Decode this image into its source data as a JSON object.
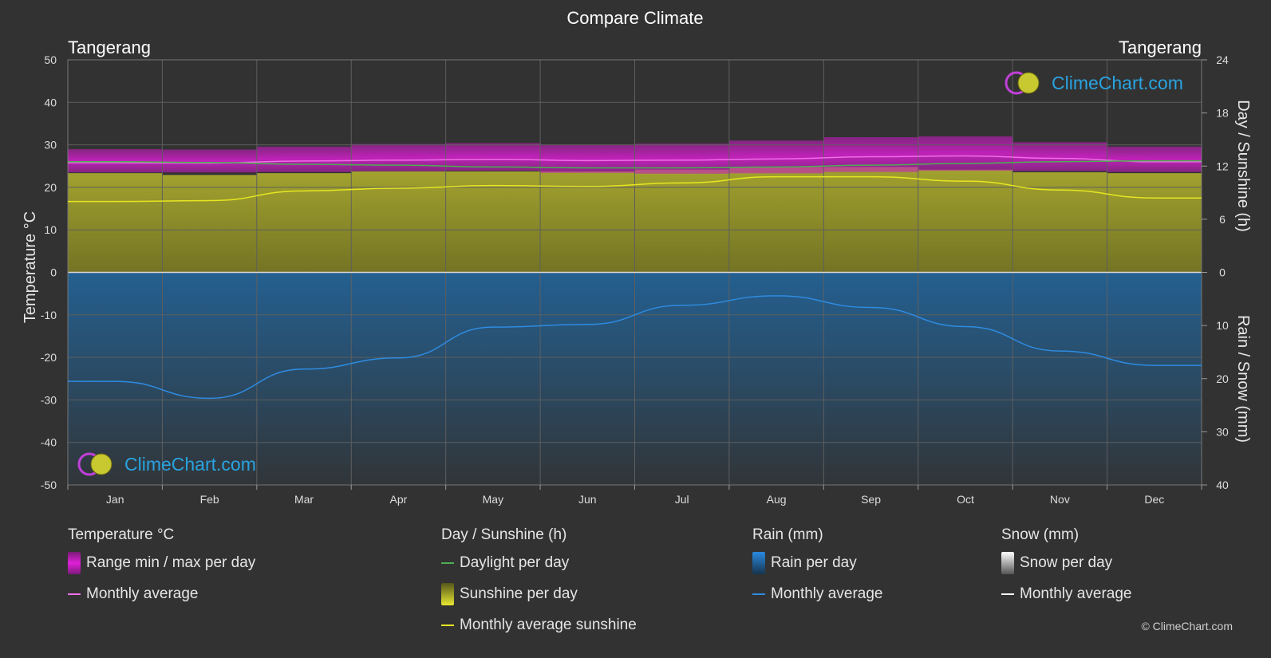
{
  "chart_data": {
    "type": "area",
    "title": "Compare Climate",
    "location_left": "Tangerang",
    "location_right": "Tangerang",
    "categories": [
      "Jan",
      "Feb",
      "Mar",
      "Apr",
      "May",
      "Jun",
      "Jul",
      "Aug",
      "Sep",
      "Oct",
      "Nov",
      "Dec"
    ],
    "y_left": {
      "label": "Temperature °C",
      "ticks": [
        50,
        40,
        30,
        20,
        10,
        0,
        -10,
        -20,
        -30,
        -40,
        -50
      ],
      "range": [
        -50,
        50
      ]
    },
    "y_right_top": {
      "label": "Day / Sunshine (h)",
      "ticks": [
        24,
        18,
        12,
        6,
        0
      ],
      "range": [
        0,
        24
      ]
    },
    "y_right_bottom": {
      "label": "Rain / Snow (mm)",
      "ticks": [
        0,
        10,
        20,
        30,
        40
      ],
      "range": [
        0,
        40
      ]
    },
    "grid": true,
    "series": [
      {
        "name": "Range min / max per day",
        "kind": "band",
        "color": "#d020c8",
        "min": [
          23.5,
          23.5,
          23.6,
          23.8,
          23.9,
          23.4,
          23.2,
          23.3,
          23.6,
          23.9,
          23.8,
          23.6
        ],
        "max": [
          29.0,
          28.9,
          29.6,
          30.2,
          30.4,
          30.1,
          30.3,
          31.0,
          31.8,
          32.0,
          30.6,
          29.6
        ]
      },
      {
        "name": "Monthly average",
        "group": "temperature",
        "color": "#f06ee8",
        "values": [
          25.8,
          25.7,
          26.2,
          26.4,
          26.6,
          26.3,
          26.4,
          26.7,
          27.2,
          27.4,
          26.8,
          26.0
        ]
      },
      {
        "name": "Daylight per day",
        "color": "#4caf50",
        "values": [
          12.5,
          12.4,
          12.2,
          12.1,
          11.9,
          11.8,
          11.8,
          11.9,
          12.1,
          12.3,
          12.5,
          12.6
        ]
      },
      {
        "name": "Sunshine per day",
        "kind": "area",
        "color": "#b5b52e",
        "values": [
          11.2,
          11.0,
          11.2,
          11.4,
          11.4,
          11.4,
          11.6,
          11.9,
          11.9,
          11.6,
          11.3,
          11.2
        ]
      },
      {
        "name": "Monthly average sunshine",
        "color": "#e6e622",
        "values": [
          8.0,
          8.1,
          9.2,
          9.5,
          9.8,
          9.7,
          10.1,
          10.8,
          10.8,
          10.3,
          9.3,
          8.4
        ]
      },
      {
        "name": "Rain per day",
        "kind": "area",
        "color": "#1f6fb0",
        "values": [
          40,
          40,
          40,
          40,
          40,
          40,
          40,
          40,
          40,
          40,
          40,
          40
        ]
      },
      {
        "name": "Monthly average",
        "group": "rain",
        "color": "#2e8be0",
        "values": [
          20.5,
          23.7,
          18.2,
          16.1,
          10.3,
          9.8,
          6.2,
          4.4,
          6.6,
          10.2,
          14.8,
          17.5
        ]
      },
      {
        "name": "Snow per day",
        "kind": "area",
        "color": "#cccccc",
        "values": [
          0,
          0,
          0,
          0,
          0,
          0,
          0,
          0,
          0,
          0,
          0,
          0
        ]
      },
      {
        "name": "Monthly average",
        "group": "snow",
        "color": "#ffffff",
        "values": [
          0,
          0,
          0,
          0,
          0,
          0,
          0,
          0,
          0,
          0,
          0,
          0
        ]
      }
    ]
  },
  "legend": {
    "temperature": {
      "title": "Temperature °C",
      "range": "Range min / max per day",
      "avg": "Monthly average"
    },
    "sunshine": {
      "title": "Day / Sunshine (h)",
      "daylight": "Daylight per day",
      "sunshine": "Sunshine per day",
      "avg": "Monthly average sunshine"
    },
    "rain": {
      "title": "Rain (mm)",
      "rain": "Rain per day",
      "avg": "Monthly average"
    },
    "snow": {
      "title": "Snow (mm)",
      "snow": "Snow per day",
      "avg": "Monthly average"
    }
  },
  "branding": {
    "logo_text": "ClimeChart.com",
    "copyright": "© ClimeChart.com"
  },
  "colors": {
    "background": "#323232",
    "grid": "#555555",
    "rain": "#1f6fb0",
    "sunshine": "#b5b52e",
    "temperature": "#d020c8"
  }
}
